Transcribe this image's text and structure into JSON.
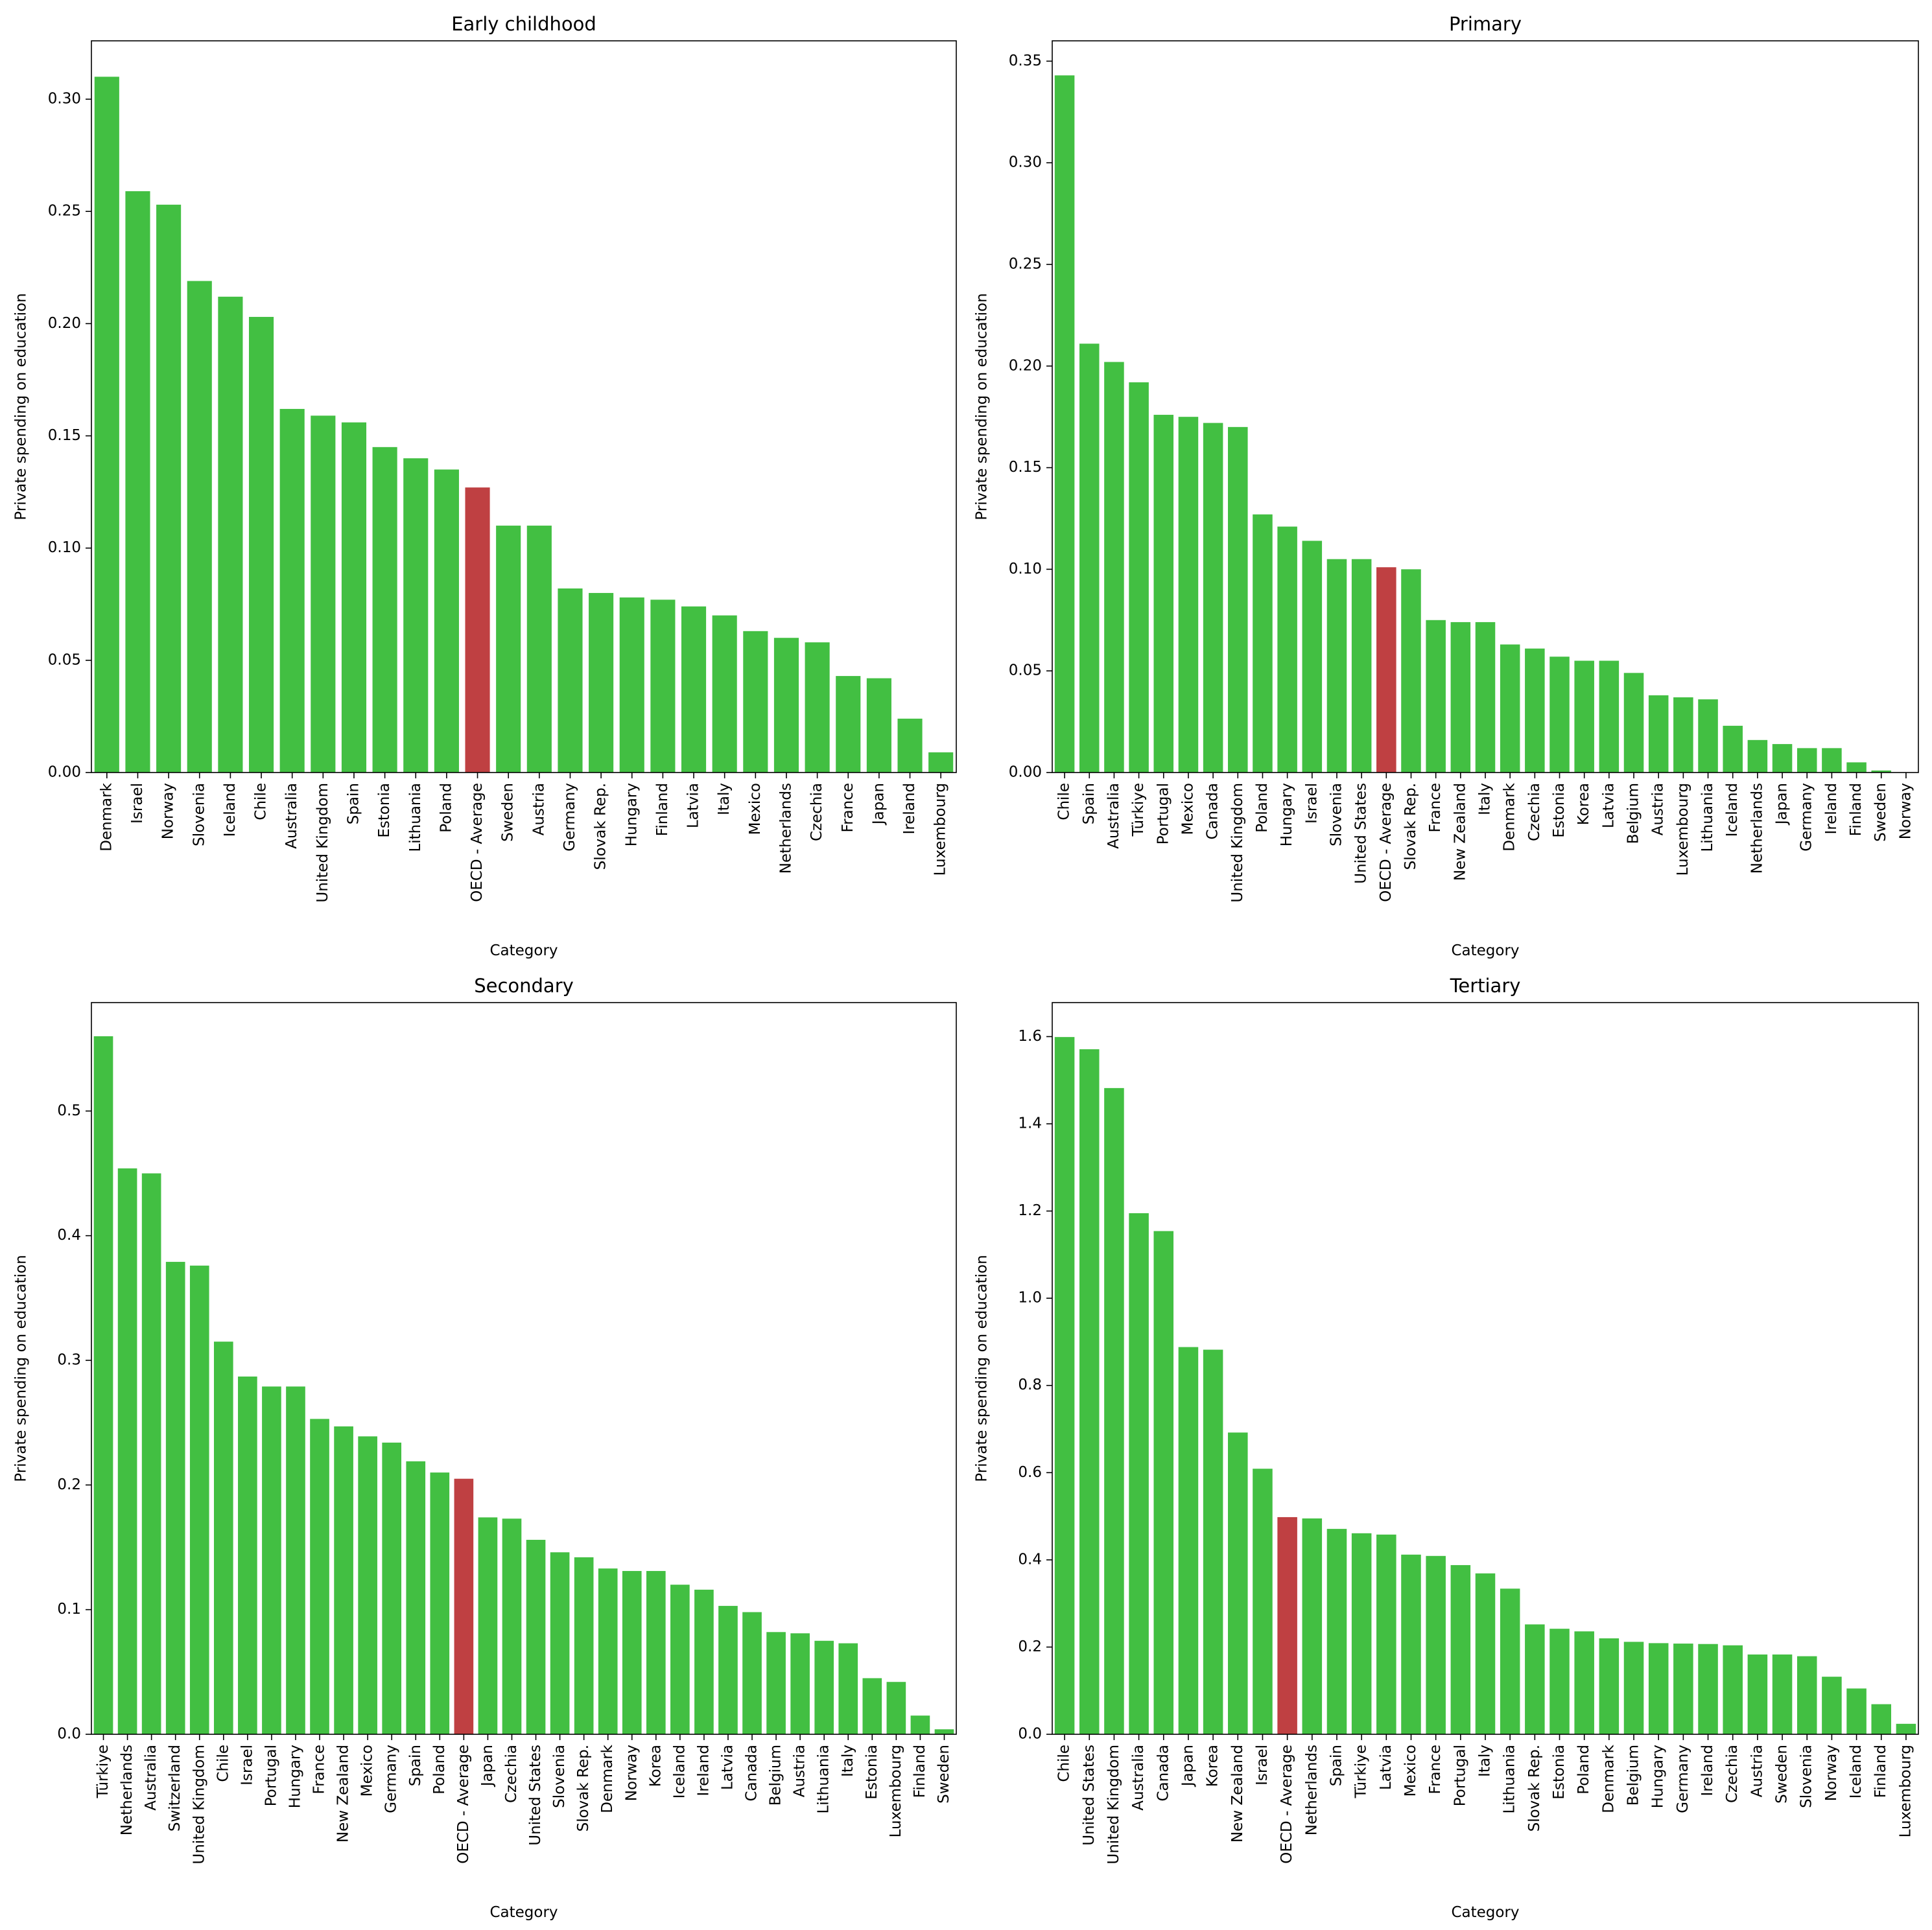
{
  "colors": {
    "bar": "#42bf42",
    "highlight": "#bf4042",
    "axis": "#000000"
  },
  "chart_data": [
    {
      "type": "bar",
      "title": "Early childhood",
      "xlabel": "Category",
      "ylabel": "Private spending on education",
      "ylim": [
        0,
        0.326
      ],
      "yticks": [
        0.0,
        0.05,
        0.1,
        0.15,
        0.2,
        0.25,
        0.3
      ],
      "ytick_labels": [
        "0.00",
        "0.05",
        "0.10",
        "0.15",
        "0.20",
        "0.25",
        "0.30"
      ],
      "highlight": "OECD - Average",
      "categories": [
        "Denmark",
        "Israel",
        "Norway",
        "Slovenia",
        "Iceland",
        "Chile",
        "Australia",
        "United Kingdom",
        "Spain",
        "Estonia",
        "Lithuania",
        "Poland",
        "OECD - Average",
        "Sweden",
        "Austria",
        "Germany",
        "Slovak Rep.",
        "Hungary",
        "Finland",
        "Latvia",
        "Italy",
        "Mexico",
        "Netherlands",
        "Czechia",
        "France",
        "Japan",
        "Ireland",
        "Luxembourg"
      ],
      "values": [
        0.31,
        0.259,
        0.253,
        0.219,
        0.212,
        0.203,
        0.162,
        0.159,
        0.156,
        0.145,
        0.14,
        0.135,
        0.127,
        0.11,
        0.11,
        0.082,
        0.08,
        0.078,
        0.077,
        0.074,
        0.07,
        0.063,
        0.06,
        0.058,
        0.043,
        0.042,
        0.024,
        0.009
      ]
    },
    {
      "type": "bar",
      "title": "Primary",
      "xlabel": "Category",
      "ylabel": "Private spending on education",
      "ylim": [
        0,
        0.36
      ],
      "yticks": [
        0.0,
        0.05,
        0.1,
        0.15,
        0.2,
        0.25,
        0.3,
        0.35
      ],
      "ytick_labels": [
        "0.00",
        "0.05",
        "0.10",
        "0.15",
        "0.20",
        "0.25",
        "0.30",
        "0.35"
      ],
      "highlight": "OECD - Average",
      "categories": [
        "Chile",
        "Spain",
        "Australia",
        "Türkiye",
        "Portugal",
        "Mexico",
        "Canada",
        "United Kingdom",
        "Poland",
        "Hungary",
        "Israel",
        "Slovenia",
        "United States",
        "OECD - Average",
        "Slovak Rep.",
        "France",
        "New Zealand",
        "Italy",
        "Denmark",
        "Czechia",
        "Estonia",
        "Korea",
        "Latvia",
        "Belgium",
        "Austria",
        "Luxembourg",
        "Lithuania",
        "Iceland",
        "Netherlands",
        "Japan",
        "Germany",
        "Ireland",
        "Finland",
        "Sweden",
        "Norway"
      ],
      "values": [
        0.343,
        0.211,
        0.202,
        0.192,
        0.176,
        0.175,
        0.172,
        0.17,
        0.127,
        0.121,
        0.114,
        0.105,
        0.105,
        0.101,
        0.1,
        0.075,
        0.074,
        0.074,
        0.063,
        0.061,
        0.057,
        0.055,
        0.055,
        0.049,
        0.038,
        0.037,
        0.036,
        0.023,
        0.016,
        0.014,
        0.012,
        0.012,
        0.005,
        0.001,
        0.0
      ]
    },
    {
      "type": "bar",
      "title": "Secondary",
      "xlabel": "Category",
      "ylabel": "Private spending on education",
      "ylim": [
        0,
        0.587
      ],
      "yticks": [
        0.0,
        0.1,
        0.2,
        0.3,
        0.4,
        0.5
      ],
      "ytick_labels": [
        "0.0",
        "0.1",
        "0.2",
        "0.3",
        "0.4",
        "0.5"
      ],
      "highlight": "OECD - Average",
      "categories": [
        "Türkiye",
        "Netherlands",
        "Australia",
        "Switzerland",
        "United Kingdom",
        "Chile",
        "Israel",
        "Portugal",
        "Hungary",
        "France",
        "New Zealand",
        "Mexico",
        "Germany",
        "Spain",
        "Poland",
        "OECD - Average",
        "Japan",
        "Czechia",
        "United States",
        "Slovenia",
        "Slovak Rep.",
        "Denmark",
        "Norway",
        "Korea",
        "Iceland",
        "Ireland",
        "Latvia",
        "Canada",
        "Belgium",
        "Austria",
        "Lithuania",
        "Italy",
        "Estonia",
        "Luxembourg",
        "Finland",
        "Sweden"
      ],
      "values": [
        0.56,
        0.454,
        0.45,
        0.379,
        0.376,
        0.315,
        0.287,
        0.279,
        0.279,
        0.253,
        0.247,
        0.239,
        0.234,
        0.219,
        0.21,
        0.205,
        0.174,
        0.173,
        0.156,
        0.146,
        0.142,
        0.133,
        0.131,
        0.131,
        0.12,
        0.116,
        0.103,
        0.098,
        0.082,
        0.081,
        0.075,
        0.073,
        0.045,
        0.042,
        0.015,
        0.004
      ]
    },
    {
      "type": "bar",
      "title": "Tertiary",
      "xlabel": "Category",
      "ylabel": "Private spending on education",
      "ylim": [
        0,
        1.678
      ],
      "yticks": [
        0.0,
        0.2,
        0.4,
        0.6,
        0.8,
        1.0,
        1.2,
        1.4,
        1.6
      ],
      "ytick_labels": [
        "0.0",
        "0.2",
        "0.4",
        "0.6",
        "0.8",
        "1.0",
        "1.2",
        "1.4",
        "1.6"
      ],
      "highlight": "OECD - Average",
      "categories": [
        "Chile",
        "United States",
        "United Kingdom",
        "Australia",
        "Canada",
        "Japan",
        "Korea",
        "New Zealand",
        "Israel",
        "OECD - Average",
        "Netherlands",
        "Spain",
        "Türkiye",
        "Latvia",
        "Mexico",
        "France",
        "Portugal",
        "Italy",
        "Lithuania",
        "Slovak Rep.",
        "Estonia",
        "Poland",
        "Denmark",
        "Belgium",
        "Hungary",
        "Germany",
        "Ireland",
        "Czechia",
        "Austria",
        "Sweden",
        "Slovenia",
        "Norway",
        "Iceland",
        "Finland",
        "Luxembourg"
      ],
      "values": [
        1.599,
        1.571,
        1.482,
        1.195,
        1.154,
        0.888,
        0.882,
        0.692,
        0.609,
        0.498,
        0.495,
        0.471,
        0.461,
        0.458,
        0.412,
        0.409,
        0.388,
        0.369,
        0.334,
        0.252,
        0.242,
        0.236,
        0.22,
        0.212,
        0.209,
        0.208,
        0.207,
        0.204,
        0.183,
        0.183,
        0.179,
        0.132,
        0.105,
        0.069,
        0.024
      ]
    }
  ]
}
